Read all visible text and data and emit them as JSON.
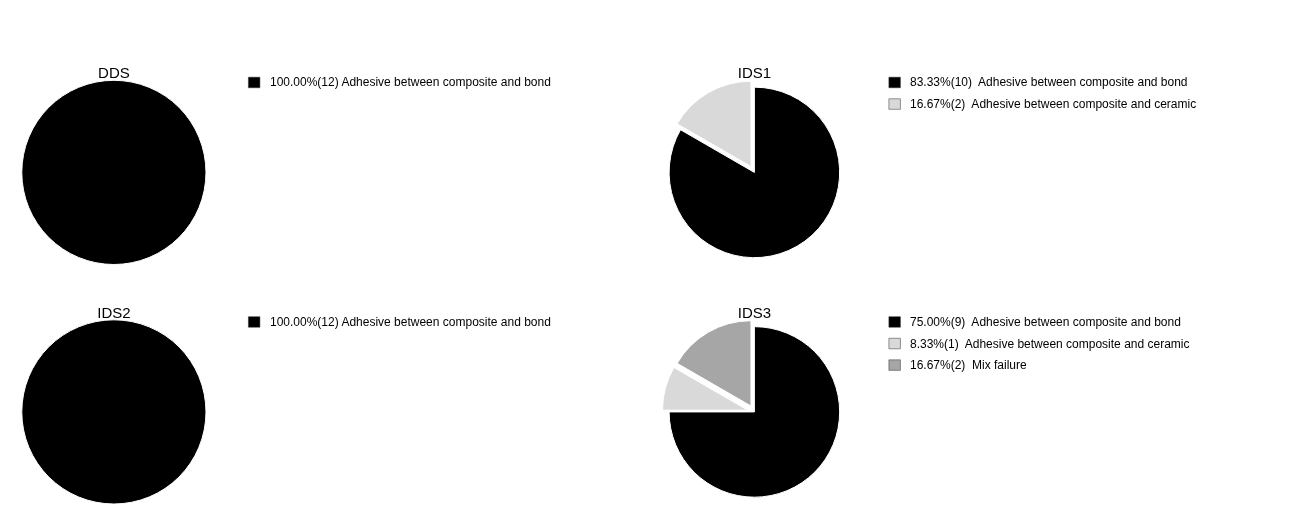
{
  "chart_data": [
    {
      "type": "pie",
      "title": "DDS",
      "categories": [
        "100.00%(12) Adhesive between composite and bond"
      ],
      "values": [
        12
      ],
      "colors": [
        "#000000"
      ],
      "legend": "right"
    },
    {
      "type": "pie",
      "title": "IDS1",
      "categories": [
        "83.33%(10)  Adhesive between composite and bond",
        "16.67%(2)  Adhesive between composite and ceramic"
      ],
      "values": [
        10,
        2
      ],
      "colors": [
        "#000000",
        "#d9d9d9"
      ],
      "legend": "right"
    },
    {
      "type": "pie",
      "title": "IDS2",
      "categories": [
        "100.00%(12) Adhesive between composite and bond"
      ],
      "values": [
        12
      ],
      "colors": [
        "#000000"
      ],
      "legend": "right"
    },
    {
      "type": "pie",
      "title": "IDS3",
      "categories": [
        "75.00%(9)  Adhesive between composite and bond",
        "8.33%(1)  Adhesive between composite and ceramic",
        "16.67%(2)  Mix failure"
      ],
      "values": [
        9,
        1,
        2
      ],
      "colors": [
        "#000000",
        "#d9d9d9",
        "#a6a6a6"
      ],
      "legend": "right"
    }
  ]
}
